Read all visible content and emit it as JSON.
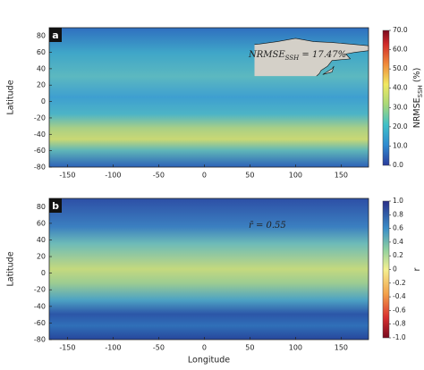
{
  "chart_data": [
    {
      "type": "map",
      "panel_label": "a",
      "annotation_parts": [
        "NRMSE",
        "SSH",
        " = 17.47%"
      ],
      "ylabel": "Latitude",
      "xlim": [
        -170,
        180
      ],
      "ylim": [
        -80,
        90
      ],
      "xticks": [
        -150,
        -100,
        -50,
        0,
        50,
        100,
        150
      ],
      "yticks": [
        -80,
        -60,
        -40,
        -20,
        0,
        20,
        40,
        60,
        80
      ],
      "colorbar": {
        "label_parts": [
          "NRMSE",
          "SSH",
          " (%)"
        ],
        "clim": [
          0,
          70
        ],
        "ticks": [
          {
            "value": 0,
            "label": "0.0"
          },
          {
            "value": 10,
            "label": "10.0"
          },
          {
            "value": 20,
            "label": "20.0"
          },
          {
            "value": 30,
            "label": "30.0"
          },
          {
            "value": 40,
            "label": "40.0"
          },
          {
            "value": 50,
            "label": "50.0"
          },
          {
            "value": 60,
            "label": "60.0"
          },
          {
            "value": 70,
            "label": "70.0"
          }
        ]
      }
    },
    {
      "type": "map",
      "panel_label": "b",
      "annotation_parts": [
        "r̄",
        "",
        " = 0.55"
      ],
      "ylabel": "Latitude",
      "xlabel": "Longitude",
      "xlim": [
        -170,
        180
      ],
      "ylim": [
        -80,
        90
      ],
      "xticks": [
        -150,
        -100,
        -50,
        0,
        50,
        100,
        150
      ],
      "yticks": [
        -80,
        -60,
        -40,
        -20,
        0,
        20,
        40,
        60,
        80
      ],
      "colorbar": {
        "label_parts": [
          "r",
          "",
          ""
        ],
        "clim": [
          -1,
          1
        ],
        "ticks": [
          {
            "value": -1,
            "label": "-1.0"
          },
          {
            "value": -0.8,
            "label": "-0.8"
          },
          {
            "value": -0.6,
            "label": "-0.6"
          },
          {
            "value": -0.4,
            "label": "-0.4"
          },
          {
            "value": -0.2,
            "label": "-0.2"
          },
          0,
          {
            "value": 0.2,
            "label": "0.2"
          },
          {
            "value": 0.4,
            "label": "0.4"
          },
          {
            "value": 0.6,
            "label": "0.6"
          },
          {
            "value": 0.8,
            "label": "0.8"
          },
          {
            "value": 1,
            "label": "1.0"
          }
        ]
      }
    }
  ]
}
